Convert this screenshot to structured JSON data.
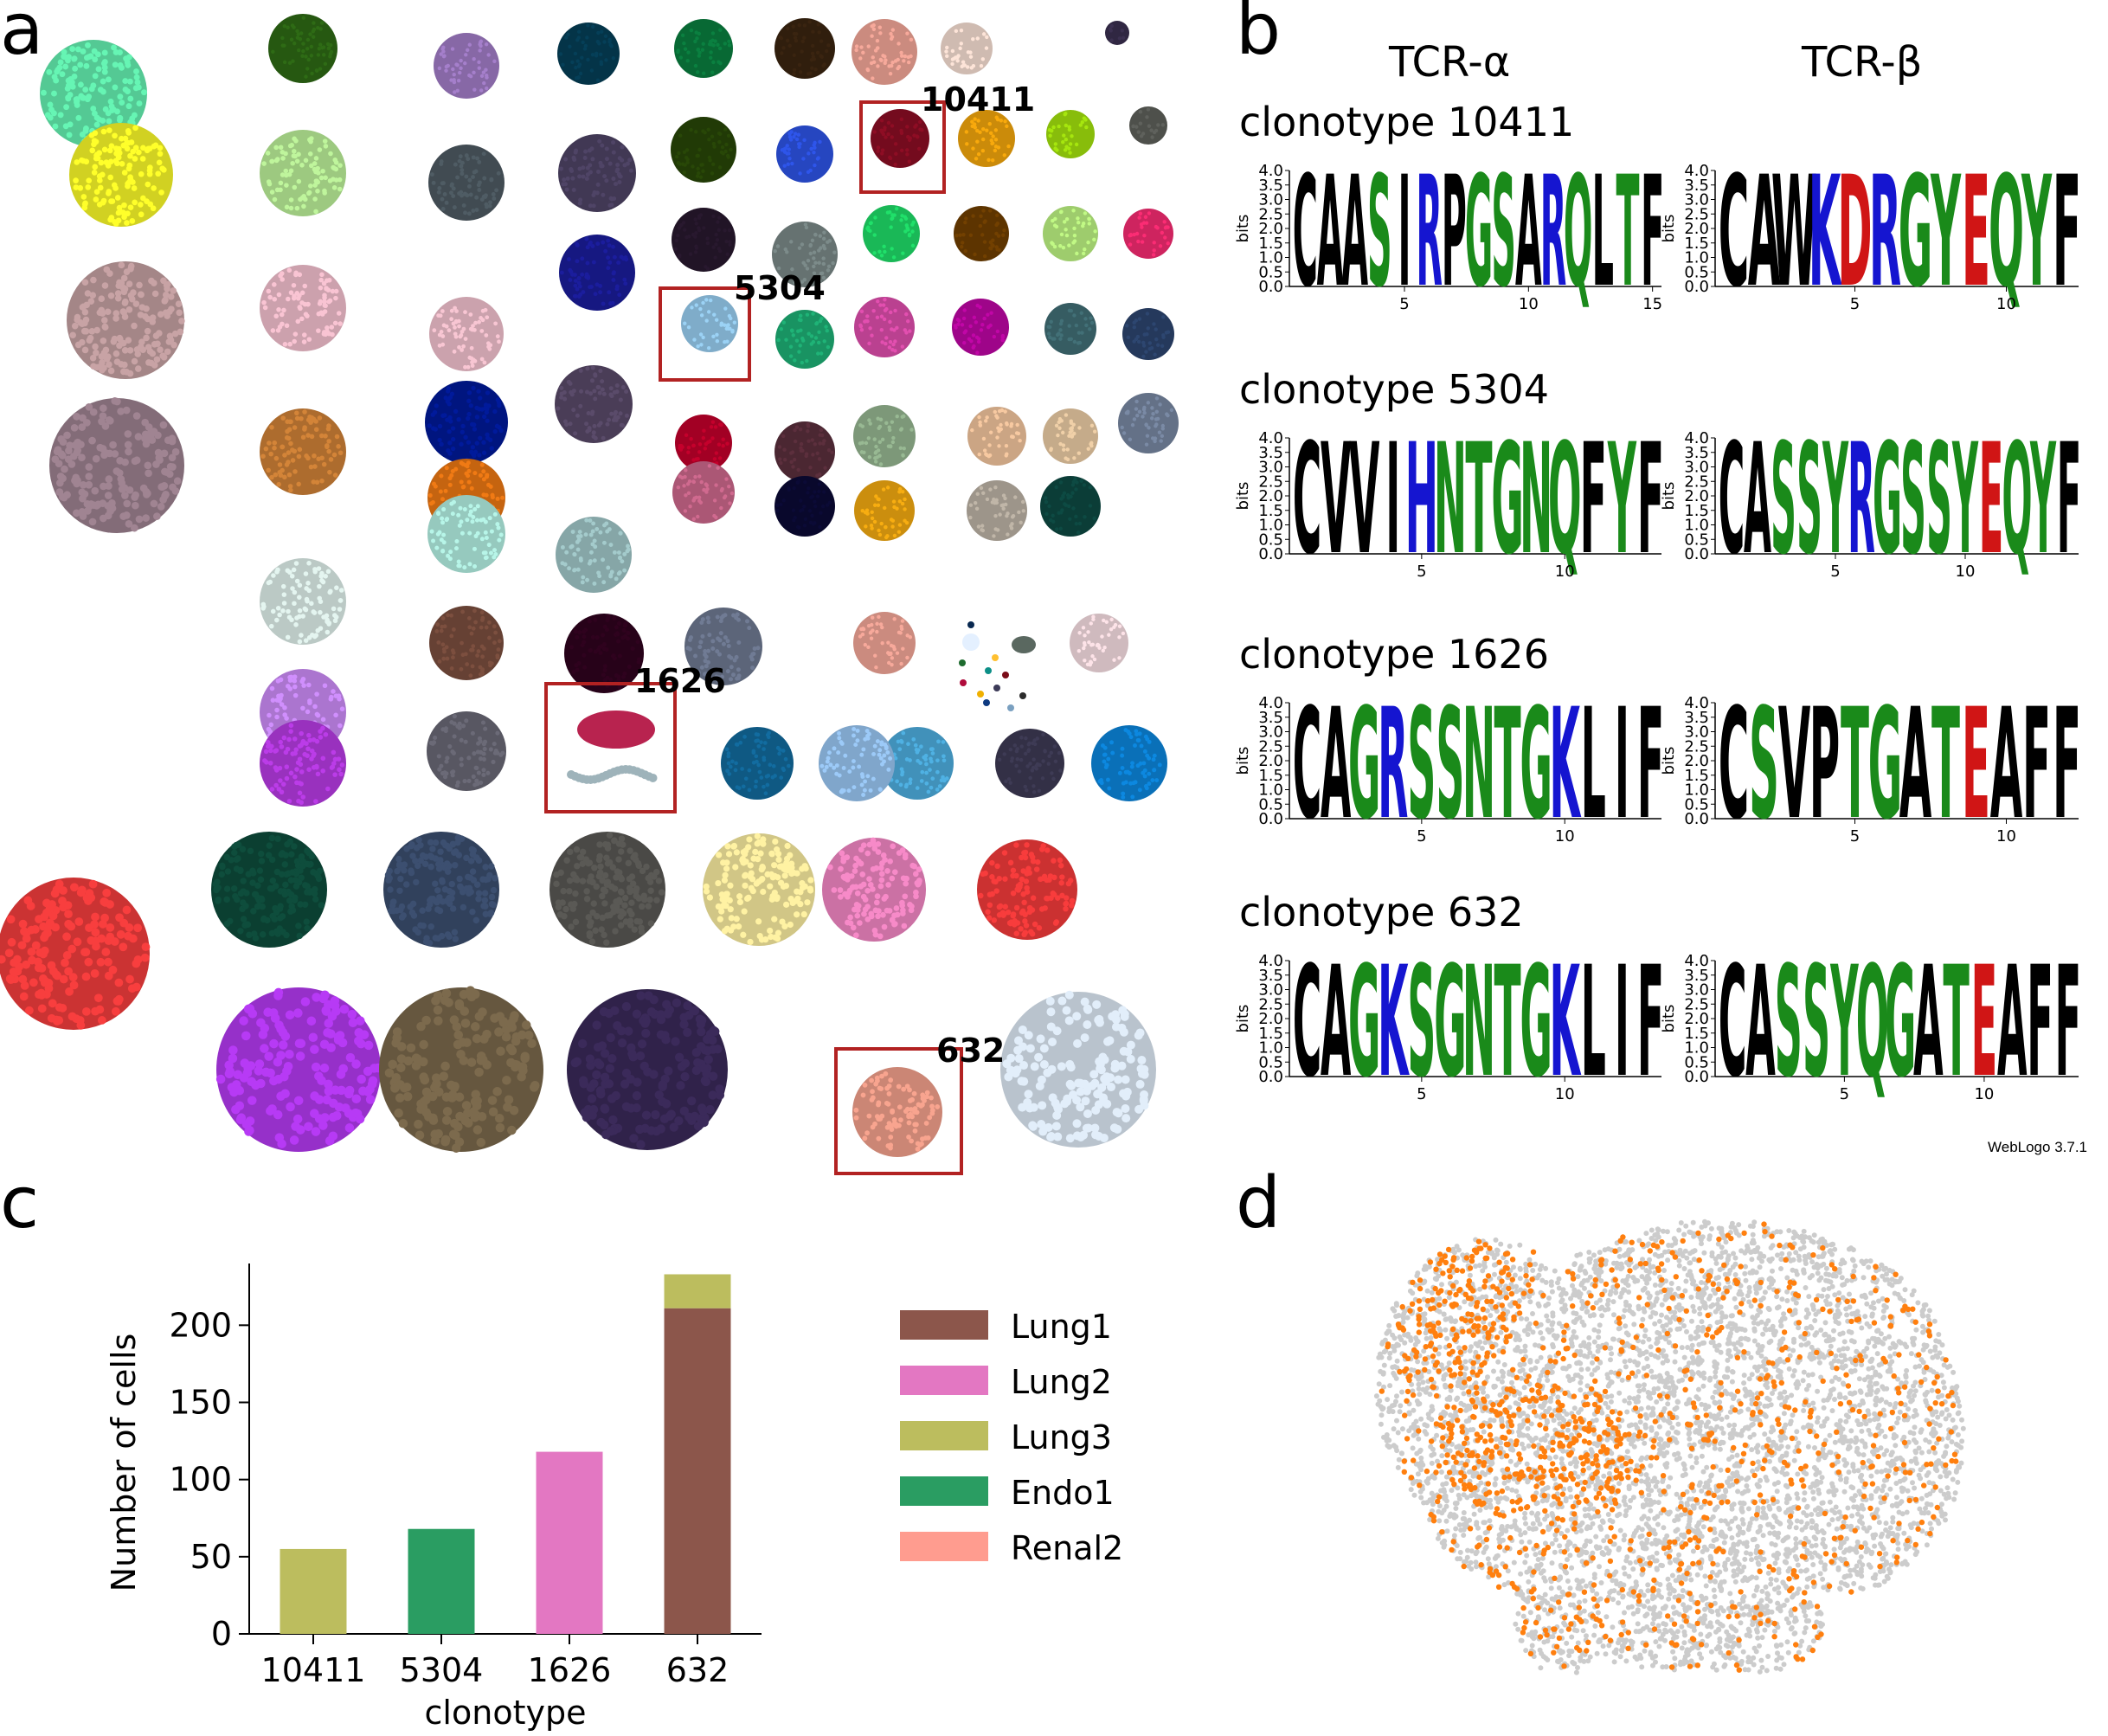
{
  "panels": {
    "a": "a",
    "b": "b",
    "c": "c",
    "d": "d"
  },
  "panel_a": {
    "callouts": [
      "10411",
      "5304",
      "1626",
      "632"
    ],
    "highlight_color": "#b22222"
  },
  "panel_b": {
    "headers": {
      "alpha": "TCR-α",
      "beta": "TCR-β"
    },
    "ylabel": "bits",
    "yticks": [
      "4.0",
      "3.5",
      "3.0",
      "2.5",
      "2.0",
      "1.5",
      "1.0",
      "0.5",
      "0.0"
    ],
    "credit": "WebLogo 3.7.1",
    "logos": [
      {
        "title": "clonotype 10411",
        "alpha": {
          "seq": "CAASIRPGSARQLTF",
          "xticks": [
            "5",
            "10",
            "15"
          ]
        },
        "beta": {
          "seq": "CAWKDRGYEQYF",
          "xticks": [
            "5",
            "10"
          ]
        }
      },
      {
        "title": "clonotype 5304",
        "alpha": {
          "seq": "CVVIHNTGNQFYF",
          "xticks": [
            "5",
            "10"
          ]
        },
        "beta": {
          "seq": "CASSYRGSSYEQYF",
          "xticks": [
            "5",
            "10"
          ]
        }
      },
      {
        "title": "clonotype 1626",
        "alpha": {
          "seq": "CAGRSSNTGKLIF",
          "xticks": [
            "5",
            "10"
          ]
        },
        "beta": {
          "seq": "CSVPTGATEAFF",
          "xticks": [
            "5",
            "10"
          ]
        }
      },
      {
        "title": "clonotype 632",
        "alpha": {
          "seq": "CAGKSGNTGKLIF",
          "xticks": [
            "5",
            "10"
          ]
        },
        "beta": {
          "seq": "CASSYQGATEAFF",
          "xticks": [
            "5",
            "10"
          ]
        }
      }
    ],
    "residue_colors": {
      "hydrophobic": "#000000",
      "polar": "#1a8a1a",
      "basic": "#1515d0",
      "acidic": "#d01515"
    }
  },
  "chart_data": {
    "type": "bar",
    "stacked": true,
    "categories": [
      "10411",
      "5304",
      "1626",
      "632"
    ],
    "xlabel": "clonotype",
    "ylabel": "Number of cells",
    "ylim": [
      0,
      240
    ],
    "yticks": [
      "0",
      "50",
      "100",
      "150",
      "200"
    ],
    "series": [
      {
        "name": "Lung1",
        "color": "#8c564b",
        "values": [
          0,
          0,
          0,
          211
        ]
      },
      {
        "name": "Lung2",
        "color": "#e377c2",
        "values": [
          0,
          0,
          118,
          0
        ]
      },
      {
        "name": "Lung3",
        "color": "#bcbd5e",
        "values": [
          55,
          0,
          0,
          22
        ]
      },
      {
        "name": "Endo1",
        "color": "#2a9d62",
        "values": [
          0,
          68,
          0,
          0
        ]
      },
      {
        "name": "Renal2",
        "color": "#ff9c8f",
        "values": [
          0,
          0,
          0,
          0
        ]
      }
    ],
    "legend_position": "right",
    "grid": false
  },
  "panel_d": {
    "highlight_color": "#ff7f0e",
    "background_color": "#cccccc"
  }
}
